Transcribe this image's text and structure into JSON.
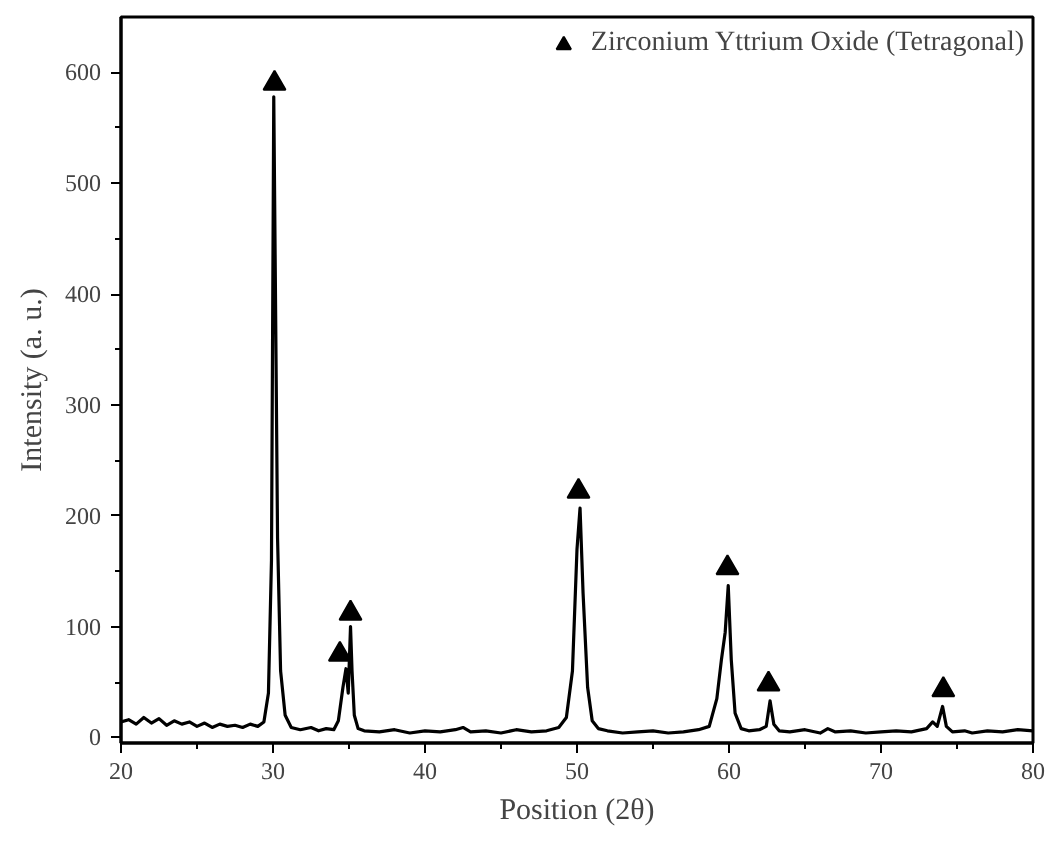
{
  "chart_data": {
    "type": "line",
    "xlabel": "Position (2θ)",
    "ylabel": "Intensity (a. u.)",
    "xlim": [
      20,
      80
    ],
    "ylim": [
      -5,
      650
    ],
    "xticks": [
      20,
      30,
      40,
      50,
      60,
      70,
      80
    ],
    "yticks": [
      0,
      100,
      200,
      300,
      400,
      500,
      600
    ],
    "grid": false,
    "legend": "top right",
    "series": [
      {
        "color": "#000000",
        "marker": "none",
        "line_style": "solid",
        "x": [
          20,
          20.5,
          21,
          21.5,
          22,
          22.5,
          23,
          23.5,
          24,
          24.5,
          25,
          25.5,
          26,
          26.5,
          27,
          27.5,
          28,
          28.5,
          29,
          29.4,
          29.7,
          29.9,
          30.05,
          30.15,
          30.3,
          30.5,
          30.8,
          31.2,
          31.8,
          32.5,
          33,
          33.5,
          34,
          34.3,
          34.6,
          34.8,
          34.95,
          35.1,
          35.2,
          35.35,
          35.6,
          36,
          37,
          38,
          39,
          40,
          41,
          42,
          42.5,
          43,
          44,
          45,
          46,
          47,
          48,
          48.8,
          49.3,
          49.7,
          50.0,
          50.2,
          50.4,
          50.7,
          51.0,
          51.4,
          52,
          53,
          54,
          55,
          56,
          57,
          58,
          58.7,
          59.2,
          59.5,
          59.75,
          59.95,
          60.15,
          60.4,
          60.8,
          61.3,
          62,
          62.45,
          62.7,
          62.95,
          63.3,
          64,
          65,
          66,
          66.5,
          67,
          68,
          69,
          70,
          71,
          72,
          73,
          73.4,
          73.7,
          74.05,
          74.3,
          74.7,
          75.5,
          76,
          77,
          78,
          79,
          80
        ],
        "values": [
          14,
          16,
          12,
          18,
          13,
          17,
          11,
          15,
          12,
          14,
          10,
          13,
          9,
          12,
          10,
          11,
          9,
          12,
          10,
          14,
          40,
          160,
          578,
          420,
          180,
          60,
          20,
          9,
          7,
          9,
          6,
          8,
          7,
          15,
          45,
          62,
          40,
          100,
          60,
          20,
          8,
          6,
          5,
          7,
          4,
          6,
          5,
          7,
          9,
          5,
          6,
          4,
          7,
          5,
          6,
          9,
          18,
          60,
          170,
          207,
          130,
          45,
          15,
          8,
          6,
          4,
          5,
          6,
          4,
          5,
          7,
          10,
          35,
          70,
          95,
          137,
          70,
          22,
          8,
          6,
          7,
          10,
          33,
          12,
          6,
          5,
          7,
          4,
          8,
          5,
          6,
          4,
          5,
          6,
          5,
          8,
          14,
          10,
          28,
          10,
          5,
          6,
          4,
          6,
          5,
          7,
          6
        ]
      },
      {
        "type": "scatter",
        "name": "Zirconium Yttrium Oxide (Tetragonal)",
        "color": "#000000",
        "marker": "triangle",
        "x": [
          30.1,
          34.4,
          35.1,
          50.1,
          59.9,
          62.6,
          74.1
        ],
        "values": [
          590,
          75,
          112,
          222,
          153,
          48,
          43
        ]
      }
    ]
  }
}
